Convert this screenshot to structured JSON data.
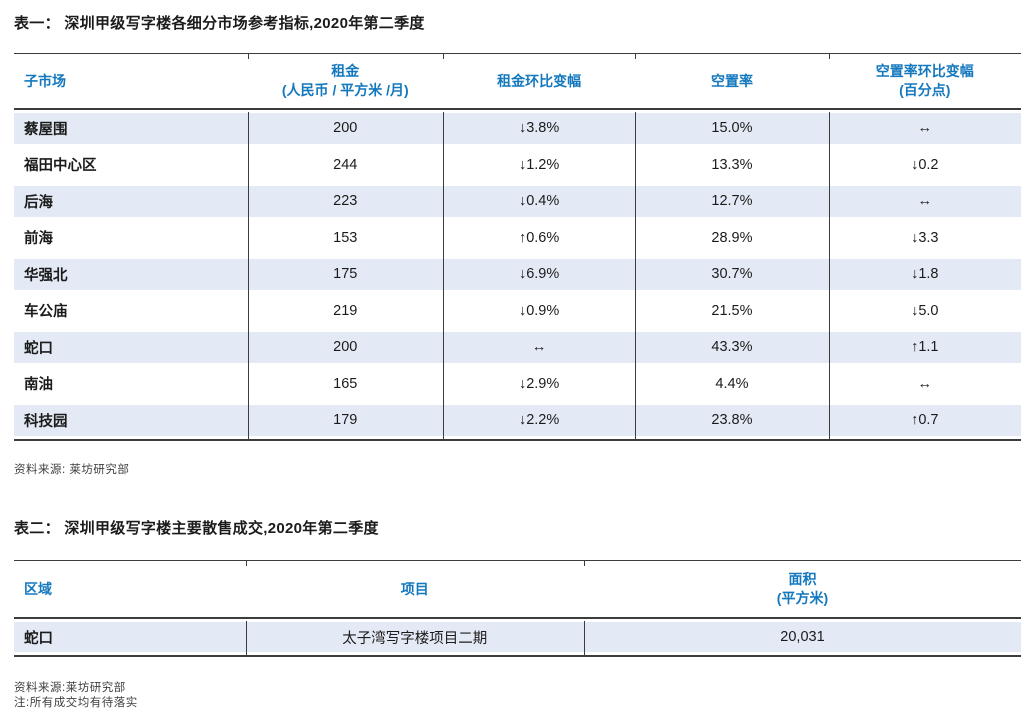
{
  "colors": {
    "accent_blue": "#1478BE",
    "stripe_blue": "#E4EAF5",
    "line_dark": "#3C3C3C",
    "text_black": "#1B1B1B"
  },
  "table1": {
    "title": "表一： 深圳甲级写字楼各细分市场参考指标,2020年第二季度",
    "headers": {
      "submarket": "子市场",
      "rent_l1": "租金",
      "rent_l2": "(人民币 / 平方米 /月)",
      "rent_change": "租金环比变幅",
      "vacancy": "空置率",
      "vacancy_change_l1": "空置率环比变幅",
      "vacancy_change_l2": "(百分点)"
    },
    "rows": [
      {
        "name": "蔡屋围",
        "rent": "200",
        "rent_change": "↓3.8%",
        "vacancy": "15.0%",
        "vacancy_change": "↔"
      },
      {
        "name": "福田中心区",
        "rent": "244",
        "rent_change": "↓1.2%",
        "vacancy": "13.3%",
        "vacancy_change": "↓0.2"
      },
      {
        "name": "后海",
        "rent": "223",
        "rent_change": "↓0.4%",
        "vacancy": "12.7%",
        "vacancy_change": "↔"
      },
      {
        "name": "前海",
        "rent": "153",
        "rent_change": "↑0.6%",
        "vacancy": "28.9%",
        "vacancy_change": "↓3.3"
      },
      {
        "name": "华强北",
        "rent": "175",
        "rent_change": "↓6.9%",
        "vacancy": "30.7%",
        "vacancy_change": "↓1.8"
      },
      {
        "name": "车公庙",
        "rent": "219",
        "rent_change": "↓0.9%",
        "vacancy": "21.5%",
        "vacancy_change": "↓5.0"
      },
      {
        "name": "蛇口",
        "rent": "200",
        "rent_change": "↔",
        "vacancy": "43.3%",
        "vacancy_change": "↑1.1"
      },
      {
        "name": "南油",
        "rent": "165",
        "rent_change": "↓2.9%",
        "vacancy": "4.4%",
        "vacancy_change": "↔"
      },
      {
        "name": "科技园",
        "rent": "179",
        "rent_change": "↓2.2%",
        "vacancy": "23.8%",
        "vacancy_change": "↑0.7"
      }
    ],
    "source": "资料来源: 莱坊研究部"
  },
  "table2": {
    "title": "表二： 深圳甲级写字楼主要散售成交,2020年第二季度",
    "headers": {
      "district": "区域",
      "project": "项目",
      "area_l1": "面积",
      "area_l2": "(平方米)"
    },
    "row": {
      "district": "蛇口",
      "project": "太子湾写字楼项目二期",
      "area": "20,031"
    },
    "source": "资料来源:莱坊研究部",
    "note": "注:所有成交均有待落实"
  }
}
